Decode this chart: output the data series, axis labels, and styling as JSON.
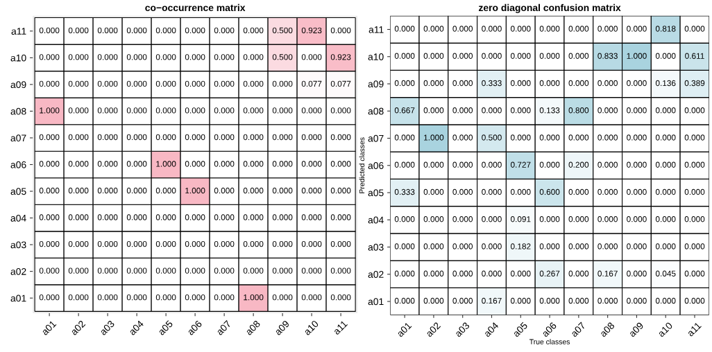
{
  "chart_data": [
    {
      "type": "heatmap",
      "title": "co−occurrence matrix",
      "colors": [
        "#ffffff",
        "#f8b8c4"
      ],
      "categories": [
        "a01",
        "a02",
        "a03",
        "a04",
        "a05",
        "a06",
        "a07",
        "a08",
        "a09",
        "a10",
        "a11"
      ],
      "y_categories": [
        "a11",
        "a10",
        "a09",
        "a08",
        "a07",
        "a06",
        "a05",
        "a04",
        "a03",
        "a02",
        "a01"
      ],
      "cells": [
        [
          0,
          0,
          0,
          0,
          0,
          0,
          0,
          0,
          0.5,
          0.923,
          0
        ],
        [
          0,
          0,
          0,
          0,
          0,
          0,
          0,
          0,
          0.5,
          0,
          0.923
        ],
        [
          0,
          0,
          0,
          0,
          0,
          0,
          0,
          0,
          0,
          0.077,
          0.077
        ],
        [
          1,
          0,
          0,
          0,
          0,
          0,
          0,
          0,
          0,
          0,
          0
        ],
        [
          0,
          0,
          0,
          0,
          0,
          0,
          0,
          0,
          0,
          0,
          0
        ],
        [
          0,
          0,
          0,
          0,
          1,
          0,
          0,
          0,
          0,
          0,
          0
        ],
        [
          0,
          0,
          0,
          0,
          0,
          1,
          0,
          0,
          0,
          0,
          0
        ],
        [
          0,
          0,
          0,
          0,
          0,
          0,
          0,
          0,
          0,
          0,
          0
        ],
        [
          0,
          0,
          0,
          0,
          0,
          0,
          0,
          0,
          0,
          0,
          0
        ],
        [
          0,
          0,
          0,
          0,
          0,
          0,
          0,
          0,
          0,
          0,
          0
        ],
        [
          0,
          0,
          0,
          0,
          0,
          0,
          0,
          1,
          0,
          0,
          0
        ]
      ],
      "cell_labels": [
        [
          "0.000",
          "0.000",
          "0.000",
          "0.000",
          "0.000",
          "0.000",
          "0.000",
          "0.000",
          "0.500",
          "0.923",
          "0.000"
        ],
        [
          "0.000",
          "0.000",
          "0.000",
          "0.000",
          "0.000",
          "0.000",
          "0.000",
          "0.000",
          "0.500",
          "0.000",
          "0.923"
        ],
        [
          "0.000",
          "0.000",
          "0.000",
          "0.000",
          "0.000",
          "0.000",
          "0.000",
          "0.000",
          "0.000",
          "0.077",
          "0.077"
        ],
        [
          "1.000",
          "0.000",
          "0.000",
          "0.000",
          "0.000",
          "0.000",
          "0.000",
          "0.000",
          "0.000",
          "0.000",
          "0.000"
        ],
        [
          "0.000",
          "0.000",
          "0.000",
          "0.000",
          "0.000",
          "0.000",
          "0.000",
          "0.000",
          "0.000",
          "0.000",
          "0.000"
        ],
        [
          "0.000",
          "0.000",
          "0.000",
          "0.000",
          "1.000",
          "0.000",
          "0.000",
          "0.000",
          "0.000",
          "0.000",
          "0.000"
        ],
        [
          "0.000",
          "0.000",
          "0.000",
          "0.000",
          "0.000",
          "1.000",
          "0.000",
          "0.000",
          "0.000",
          "0.000",
          "0.000"
        ],
        [
          "0.000",
          "0.000",
          "0.000",
          "0.000",
          "0.000",
          "0.000",
          "0.000",
          "0.000",
          "0.000",
          "0.000",
          "0.000"
        ],
        [
          "0.000",
          "0.000",
          "0.000",
          "0.000",
          "0.000",
          "0.000",
          "0.000",
          "0.000",
          "0.000",
          "0.000",
          "0.000"
        ],
        [
          "0.000",
          "0.000",
          "0.000",
          "0.000",
          "0.000",
          "0.000",
          "0.000",
          "0.000",
          "0.000",
          "0.000",
          "0.000"
        ],
        [
          "0.000",
          "0.000",
          "0.000",
          "0.000",
          "0.000",
          "0.000",
          "0.000",
          "1.000",
          "0.000",
          "0.000",
          "0.000"
        ]
      ]
    },
    {
      "type": "heatmap",
      "title": "zero diagonal confusion matrix",
      "xlabel": "True classes",
      "ylabel": "Predicted classes",
      "colors": [
        "#ffffff",
        "#a9d3df"
      ],
      "categories": [
        "a01",
        "a02",
        "a03",
        "a04",
        "a05",
        "a06",
        "a07",
        "a08",
        "a09",
        "a10",
        "a11"
      ],
      "y_categories": [
        "a11",
        "a10",
        "a09",
        "a08",
        "a07",
        "a06",
        "a05",
        "a04",
        "a03",
        "a02",
        "a01"
      ],
      "cells": [
        [
          0,
          0,
          0,
          0,
          0,
          0,
          0,
          0,
          0,
          0.818,
          0
        ],
        [
          0,
          0,
          0,
          0,
          0,
          0,
          0,
          0.833,
          1,
          0,
          0.611
        ],
        [
          0,
          0,
          0,
          0.333,
          0,
          0,
          0,
          0,
          0,
          0.136,
          0.389
        ],
        [
          0.667,
          0,
          0,
          0,
          0,
          0.133,
          0.8,
          0,
          0,
          0,
          0
        ],
        [
          0,
          1,
          0,
          0.5,
          0,
          0,
          0,
          0,
          0,
          0,
          0
        ],
        [
          0,
          0,
          0,
          0,
          0.727,
          0,
          0.2,
          0,
          0,
          0,
          0
        ],
        [
          0.333,
          0,
          0,
          0,
          0,
          0.6,
          0,
          0,
          0,
          0,
          0
        ],
        [
          0,
          0,
          0,
          0,
          0.091,
          0,
          0,
          0,
          0,
          0,
          0
        ],
        [
          0,
          0,
          0,
          0,
          0.182,
          0,
          0,
          0,
          0,
          0,
          0
        ],
        [
          0,
          0,
          0,
          0,
          0,
          0.267,
          0,
          0.167,
          0,
          0.045,
          0
        ],
        [
          0,
          0,
          0,
          0.167,
          0,
          0,
          0,
          0,
          0,
          0,
          0
        ]
      ],
      "cell_labels": [
        [
          "0.000",
          "0.000",
          "0.000",
          "0.000",
          "0.000",
          "0.000",
          "0.000",
          "0.000",
          "0.000",
          "0.818",
          "0.000"
        ],
        [
          "0.000",
          "0.000",
          "0.000",
          "0.000",
          "0.000",
          "0.000",
          "0.000",
          "0.833",
          "1.000",
          "0.000",
          "0.611"
        ],
        [
          "0.000",
          "0.000",
          "0.000",
          "0.333",
          "0.000",
          "0.000",
          "0.000",
          "0.000",
          "0.000",
          "0.136",
          "0.389"
        ],
        [
          "0.667",
          "0.000",
          "0.000",
          "0.000",
          "0.000",
          "0.133",
          "0.800",
          "0.000",
          "0.000",
          "0.000",
          "0.000"
        ],
        [
          "0.000",
          "1.000",
          "0.000",
          "0.500",
          "0.000",
          "0.000",
          "0.000",
          "0.000",
          "0.000",
          "0.000",
          "0.000"
        ],
        [
          "0.000",
          "0.000",
          "0.000",
          "0.000",
          "0.727",
          "0.000",
          "0.200",
          "0.000",
          "0.000",
          "0.000",
          "0.000"
        ],
        [
          "0.333",
          "0.000",
          "0.000",
          "0.000",
          "0.000",
          "0.600",
          "0.000",
          "0.000",
          "0.000",
          "0.000",
          "0.000"
        ],
        [
          "0.000",
          "0.000",
          "0.000",
          "0.000",
          "0.091",
          "0.000",
          "0.000",
          "0.000",
          "0.000",
          "0.000",
          "0.000"
        ],
        [
          "0.000",
          "0.000",
          "0.000",
          "0.000",
          "0.182",
          "0.000",
          "0.000",
          "0.000",
          "0.000",
          "0.000",
          "0.000"
        ],
        [
          "0.000",
          "0.000",
          "0.000",
          "0.000",
          "0.000",
          "0.267",
          "0.000",
          "0.167",
          "0.000",
          "0.045",
          "0.000"
        ],
        [
          "0.000",
          "0.000",
          "0.000",
          "0.167",
          "0.000",
          "0.000",
          "0.000",
          "0.000",
          "0.000",
          "0.000",
          "0.000"
        ]
      ]
    }
  ]
}
